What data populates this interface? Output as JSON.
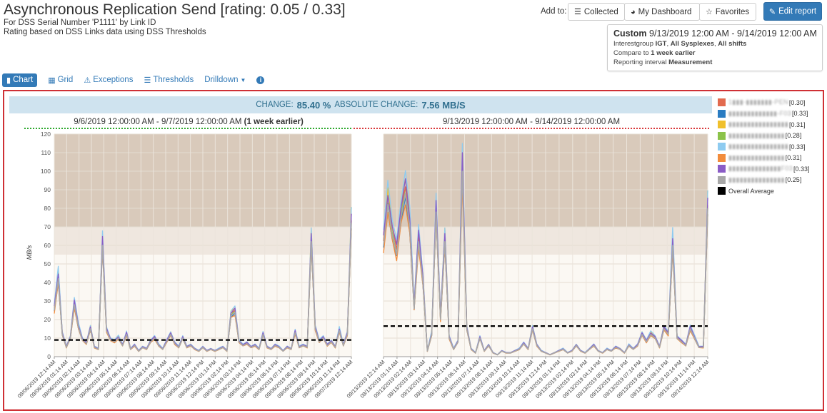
{
  "header": {
    "title": "Asynchronous Replication Send [rating: 0.05 / 0.33]",
    "subtitle1": "For DSS Serial Number 'P1111' by Link ID",
    "subtitle2": "Rating based on DSS Links data using DSS Thresholds"
  },
  "toolbar": {
    "add_to_label": "Add to:",
    "collected": "Collected",
    "my_dashboard": "My Dashboard",
    "favorites": "Favorites",
    "edit_report": "Edit report"
  },
  "info": {
    "mode": "Custom",
    "range": "9/13/2019 12:00 AM - 9/14/2019 12:00 AM",
    "ig_label": "Interestgroup",
    "ig_value": "IGT",
    "ig_sysplexes": "All Sysplexes",
    "ig_shifts": "All shifts",
    "compare_label": "Compare to",
    "compare_value": "1 week earlier",
    "interval_label": "Reporting interval",
    "interval_value": "Measurement"
  },
  "tabs": {
    "chart": "Chart",
    "grid": "Grid",
    "exceptions": "Exceptions",
    "thresholds": "Thresholds",
    "drilldown": "Drilldown"
  },
  "banner": {
    "change_label": "CHANGE:",
    "change_value": "85.40 %",
    "abs_label": "ABSOLUTE CHANGE:",
    "abs_value": "7.56 MB/S"
  },
  "icons": {
    "chart": "bar-chart-icon",
    "grid": "grid-icon",
    "exceptions": "warning-icon",
    "thresholds": "list-icon",
    "drilldown": "caret-down-icon",
    "info": "info-icon",
    "collected": "list-icon",
    "dashboard": "dashboard-icon",
    "favorites": "star-icon",
    "edit": "edit-icon"
  },
  "colors": {
    "accent": "#337ab7",
    "frame": "#cf3035",
    "banner_bg": "#cfe3ef",
    "zone_high": "#d9cabb",
    "zone_mid": "#efe7df",
    "zone_low": "#fbf8f3",
    "left_ref_line": "#2ea82e",
    "right_ref_line": "#d9383a"
  },
  "legend": [
    {
      "name": "1▮▮▮-▮▮▮▮▮▮▮-PEN",
      "rating": "[0.30]",
      "color": "#e26a4e"
    },
    {
      "name": "▮▮▮▮▮▮▮▮▮▮▮▮▮-F03",
      "rating": "[0.33]",
      "color": "#2a7cc2"
    },
    {
      "name": "▮▮▮▮▮▮▮▮▮▮▮▮▮▮▮▮",
      "rating": "[0.31]",
      "color": "#f0c02c"
    },
    {
      "name": "▮▮▮▮▮▮▮▮▮▮▮▮▮▮▮",
      "rating": "[0.28]",
      "color": "#8bc34a"
    },
    {
      "name": "▮▮▮▮▮▮▮▮▮▮▮▮▮▮▮▮",
      "rating": "[0.33]",
      "color": "#8ecbf0"
    },
    {
      "name": "▮▮▮▮▮▮▮▮▮▮▮▮▮▮▮",
      "rating": "[0.31]",
      "color": "#f28c3c"
    },
    {
      "name": "▮▮▮▮▮▮▮▮▮▮▮▮▮▮F03",
      "rating": "[0.33]",
      "color": "#8a5cc6"
    },
    {
      "name": "▮▮▮▮▮▮▮▮▮▮▮▮▮▮▮",
      "rating": "[0.25]",
      "color": "#a8a8a8"
    },
    {
      "name": "Overall Average",
      "rating": "",
      "color": "#000000",
      "plain": true
    }
  ],
  "chart_data": [
    {
      "type": "line",
      "title": "9/6/2019 12:00:00 AM - 9/7/2019 12:00:00 AM",
      "title_suffix": "(1 week earlier)",
      "ylabel": "MB/s",
      "ylim": [
        0,
        120
      ],
      "yticks": [
        0,
        10,
        20,
        30,
        40,
        50,
        60,
        70,
        80,
        90,
        100,
        110,
        120
      ],
      "threshold_bands": [
        [
          55,
          70
        ],
        [
          70,
          120
        ]
      ],
      "average": 9,
      "x": [
        "09/06/2019 12:14 AM",
        "09/06/2019 01:14 AM",
        "09/06/2019 02:14 AM",
        "09/06/2019 03:14 AM",
        "09/06/2019 04:14 AM",
        "09/06/2019 05:14 AM",
        "09/06/2019 06:14 AM",
        "09/06/2019 07:14 AM",
        "09/06/2019 08:14 AM",
        "09/06/2019 09:14 AM",
        "09/06/2019 10:14 AM",
        "09/06/2019 11:14 AM",
        "09/06/2019 12:14 PM",
        "09/06/2019 01:14 PM",
        "09/06/2019 02:14 PM",
        "09/06/2019 03:14 PM",
        "09/06/2019 04:14 PM",
        "09/06/2019 05:14 PM",
        "09/06/2019 06:14 PM",
        "09/06/2019 07:14 PM",
        "09/06/2019 08:14 PM",
        "09/06/2019 09:14 PM",
        "09/06/2019 10:14 PM",
        "09/06/2019 11:14 PM",
        "09/07/2019 12:14 AM"
      ],
      "series_gray": [
        25,
        42,
        12,
        5,
        10,
        28,
        16,
        9,
        7,
        15,
        5,
        4,
        60,
        14,
        9,
        8,
        10,
        6,
        12,
        4,
        6,
        3,
        5,
        4,
        8,
        10,
        6,
        4,
        8,
        12,
        7,
        5,
        10,
        5,
        6,
        4,
        3,
        5,
        3,
        4,
        3,
        4,
        5,
        3,
        22,
        24,
        8,
        6,
        7,
        5,
        6,
        4,
        12,
        5,
        4,
        6,
        5,
        3,
        5,
        4,
        13,
        5,
        6,
        5,
        62,
        15,
        8,
        10,
        6,
        8,
        5,
        14,
        6,
        12,
        72
      ]
    },
    {
      "type": "line",
      "title": "9/13/2019 12:00:00 AM - 9/14/2019 12:00:00 AM",
      "ylabel": "",
      "ylim": [
        0,
        120
      ],
      "yticks": [
        0,
        10,
        20,
        30,
        40,
        50,
        60,
        70,
        80,
        90,
        100,
        110,
        120
      ],
      "threshold_bands": [
        [
          55,
          70
        ],
        [
          70,
          120
        ]
      ],
      "average": 16.5,
      "x": [
        "09/13/2019 12:14 AM",
        "09/13/2019 01:14 AM",
        "09/13/2019 02:14 AM",
        "09/13/2019 03:14 AM",
        "09/13/2019 04:14 AM",
        "09/13/2019 05:14 AM",
        "09/13/2019 06:14 AM",
        "09/13/2019 07:14 AM",
        "09/13/2019 08:14 AM",
        "09/13/2019 09:14 AM",
        "09/13/2019 10:14 AM",
        "09/13/2019 11:14 AM",
        "09/13/2019 12:14 PM",
        "09/13/2019 01:14 PM",
        "09/13/2019 02:14 PM",
        "09/13/2019 03:14 PM",
        "09/13/2019 04:14 PM",
        "09/13/2019 05:14 PM",
        "09/13/2019 06:14 PM",
        "09/13/2019 07:14 PM",
        "09/13/2019 08:14 PM",
        "09/13/2019 09:14 PM",
        "09/13/2019 10:14 PM",
        "09/13/2019 11:14 PM",
        "09/14/2019 12:14 AM"
      ],
      "series_gray": [
        60,
        82,
        65,
        55,
        75,
        88,
        70,
        26,
        62,
        40,
        3,
        12,
        78,
        20,
        62,
        10,
        4,
        8,
        100,
        15,
        4,
        2,
        10,
        3,
        6,
        2,
        1,
        3,
        2,
        2,
        3,
        4,
        7,
        4,
        15,
        6,
        3,
        2,
        1,
        2,
        3,
        4,
        2,
        3,
        6,
        3,
        2,
        4,
        6,
        3,
        2,
        4,
        3,
        5,
        4,
        2,
        6,
        4,
        6,
        12,
        8,
        12,
        10,
        5,
        15,
        12,
        60,
        10,
        8,
        6,
        15,
        10,
        5,
        5,
        80
      ]
    }
  ]
}
